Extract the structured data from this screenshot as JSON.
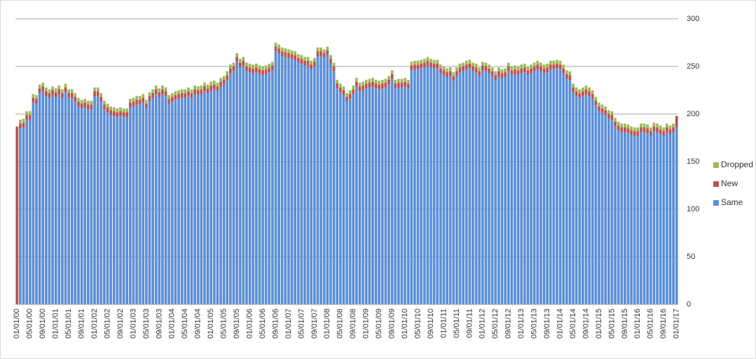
{
  "chart_data": {
    "type": "stacked_bar",
    "categories": [
      "01/01/00",
      null,
      null,
      null,
      "05/01/00",
      null,
      null,
      null,
      "09/01/00",
      null,
      null,
      null,
      "01/01/01",
      null,
      null,
      null,
      "05/01/01",
      null,
      null,
      null,
      "09/01/01",
      null,
      null,
      null,
      "01/01/02",
      null,
      null,
      null,
      "05/01/02",
      null,
      null,
      null,
      "09/01/02",
      null,
      null,
      null,
      "01/01/03",
      null,
      null,
      null,
      "05/01/03",
      null,
      null,
      null,
      "09/01/03",
      null,
      null,
      null,
      "01/01/04",
      null,
      null,
      null,
      "05/01/04",
      null,
      null,
      null,
      "09/01/04",
      null,
      null,
      null,
      "01/01/05",
      null,
      null,
      null,
      "05/01/05",
      null,
      null,
      null,
      "09/01/05",
      null,
      null,
      null,
      "01/01/06",
      null,
      null,
      null,
      "05/01/06",
      null,
      null,
      null,
      "09/01/06",
      null,
      null,
      null,
      "01/01/07",
      null,
      null,
      null,
      "05/01/07",
      null,
      null,
      null,
      "09/01/07",
      null,
      null,
      null,
      "01/01/08",
      null,
      null,
      null,
      "05/01/08",
      null,
      null,
      null,
      "09/01/08",
      null,
      null,
      null,
      "01/01/09",
      null,
      null,
      null,
      "05/01/09",
      null,
      null,
      null,
      "09/01/09",
      null,
      null,
      null,
      "01/01/10",
      null,
      null,
      null,
      "05/01/10",
      null,
      null,
      null,
      "09/01/10",
      null,
      null,
      null,
      "01/01/11",
      null,
      null,
      null,
      "05/01/11",
      null,
      null,
      null,
      "09/01/11",
      null,
      null,
      null,
      "01/01/12",
      null,
      null,
      null,
      "05/01/12",
      null,
      null,
      null,
      "09/01/12",
      null,
      null,
      null,
      "01/01/13",
      null,
      null,
      null,
      "05/01/13",
      null,
      null,
      null,
      "09/01/13",
      null,
      null,
      null,
      "01/01/14",
      null,
      null,
      null,
      "05/01/14",
      null,
      null,
      null,
      "09/01/14",
      null,
      null,
      null,
      "01/01/15",
      null,
      null,
      null,
      "05/01/15",
      null,
      null,
      null,
      "09/01/15",
      null,
      null,
      null,
      "01/01/16",
      null,
      null,
      null,
      "05/01/16",
      null,
      null,
      null,
      "09/01/16",
      null,
      null,
      null,
      "01/01/17"
    ],
    "series": [
      {
        "name": "Same",
        "color": "#5b8fd8",
        "values": [
          0,
          185,
          186,
          194,
          194,
          212,
          211,
          222,
          224,
          219,
          217,
          220,
          218,
          221,
          217,
          223,
          217,
          217,
          213,
          208,
          206,
          207,
          205,
          205,
          219,
          219,
          213,
          205,
          202,
          199,
          198,
          197,
          198,
          197,
          197,
          207,
          208,
          210,
          210,
          212,
          206,
          214,
          217,
          221,
          218,
          221,
          219,
          211,
          213,
          215,
          216,
          217,
          217,
          219,
          217,
          221,
          220,
          221,
          224,
          222,
          225,
          226,
          224,
          229,
          231,
          236,
          243,
          245,
          255,
          249,
          251,
          245,
          244,
          243,
          244,
          242,
          241,
          242,
          244,
          246,
          266,
          264,
          261,
          260,
          259,
          258,
          257,
          254,
          253,
          251,
          251,
          247,
          250,
          261,
          261,
          259,
          262,
          253,
          245,
          227,
          223,
          220,
          213,
          216,
          221,
          229,
          224,
          225,
          227,
          228,
          229,
          227,
          226,
          227,
          228,
          231,
          237,
          227,
          228,
          228,
          229,
          227,
          246,
          247,
          247,
          248,
          249,
          251,
          249,
          248,
          248,
          243,
          241,
          239,
          240,
          235,
          240,
          244,
          245,
          247,
          248,
          245,
          244,
          240,
          246,
          245,
          243,
          240,
          236,
          240,
          238,
          239,
          245,
          241,
          242,
          241,
          243,
          244,
          241,
          243,
          245,
          247,
          245,
          243,
          244,
          247,
          247,
          248,
          247,
          243,
          237,
          236,
          223,
          219,
          217,
          219,
          221,
          219,
          216,
          209,
          203,
          201,
          199,
          195,
          194,
          187,
          183,
          181,
          181,
          180,
          178,
          177,
          177,
          181,
          181,
          180,
          177,
          182,
          181,
          179,
          177,
          181,
          179,
          181,
          186
        ]
      },
      {
        "name": "New",
        "color": "#c0504d",
        "values": [
          187,
          5,
          5,
          5,
          5,
          5,
          5,
          5,
          5,
          5,
          5,
          5,
          5,
          5,
          5,
          5,
          5,
          5,
          5,
          5,
          5,
          5,
          5,
          5,
          5,
          5,
          5,
          5,
          5,
          5,
          5,
          5,
          5,
          5,
          5,
          5,
          5,
          5,
          5,
          5,
          5,
          5,
          5,
          5,
          5,
          5,
          5,
          5,
          5,
          5,
          5,
          5,
          5,
          5,
          5,
          5,
          5,
          5,
          5,
          5,
          5,
          5,
          5,
          5,
          5,
          5,
          5,
          5,
          5,
          5,
          5,
          5,
          5,
          5,
          5,
          5,
          5,
          5,
          5,
          5,
          5,
          5,
          5,
          5,
          5,
          5,
          5,
          5,
          5,
          5,
          5,
          5,
          5,
          5,
          5,
          5,
          5,
          5,
          5,
          5,
          5,
          5,
          5,
          5,
          5,
          5,
          5,
          5,
          5,
          5,
          5,
          5,
          5,
          5,
          5,
          5,
          5,
          5,
          5,
          5,
          5,
          5,
          5,
          5,
          5,
          5,
          5,
          5,
          5,
          5,
          5,
          5,
          5,
          5,
          5,
          5,
          5,
          5,
          5,
          5,
          5,
          5,
          5,
          5,
          5,
          5,
          5,
          5,
          5,
          5,
          5,
          5,
          5,
          5,
          5,
          5,
          5,
          5,
          5,
          5,
          5,
          5,
          5,
          5,
          5,
          5,
          5,
          5,
          5,
          5,
          5,
          5,
          5,
          5,
          5,
          5,
          5,
          5,
          5,
          5,
          5,
          5,
          5,
          5,
          5,
          5,
          5,
          5,
          5,
          5,
          5,
          5,
          5,
          5,
          5,
          5,
          5,
          5,
          5,
          5,
          5,
          5,
          5,
          5,
          12
        ]
      },
      {
        "name": "Dropped",
        "color": "#9bbb59",
        "values": [
          0,
          4,
          4,
          4,
          4,
          4,
          4,
          4,
          4,
          4,
          4,
          4,
          4,
          4,
          4,
          4,
          4,
          4,
          4,
          4,
          4,
          4,
          4,
          4,
          4,
          4,
          4,
          4,
          4,
          4,
          4,
          4,
          4,
          4,
          4,
          4,
          4,
          4,
          4,
          4,
          4,
          4,
          4,
          4,
          4,
          4,
          4,
          4,
          4,
          4,
          4,
          4,
          4,
          4,
          4,
          4,
          4,
          4,
          4,
          4,
          4,
          4,
          4,
          4,
          4,
          4,
          4,
          4,
          4,
          4,
          4,
          4,
          4,
          4,
          4,
          4,
          4,
          4,
          4,
          4,
          4,
          4,
          4,
          4,
          4,
          4,
          4,
          4,
          4,
          4,
          4,
          4,
          4,
          4,
          4,
          4,
          4,
          4,
          4,
          4,
          4,
          4,
          4,
          4,
          4,
          4,
          4,
          4,
          4,
          4,
          4,
          4,
          4,
          4,
          4,
          4,
          4,
          4,
          4,
          4,
          4,
          4,
          4,
          4,
          4,
          4,
          4,
          4,
          4,
          4,
          4,
          4,
          4,
          4,
          4,
          4,
          4,
          4,
          4,
          4,
          4,
          4,
          4,
          4,
          4,
          4,
          4,
          4,
          4,
          4,
          4,
          4,
          4,
          4,
          4,
          4,
          4,
          4,
          4,
          4,
          4,
          4,
          4,
          4,
          4,
          4,
          4,
          4,
          4,
          4,
          4,
          4,
          4,
          4,
          4,
          4,
          4,
          4,
          4,
          4,
          4,
          4,
          4,
          4,
          4,
          4,
          4,
          4,
          4,
          4,
          4,
          4,
          4,
          4,
          4,
          4,
          4,
          4,
          4,
          4,
          4,
          4,
          4,
          4,
          0
        ]
      }
    ],
    "ylim": [
      0,
      300
    ],
    "yticks": [
      0,
      50,
      100,
      150,
      200,
      250,
      300
    ],
    "grid": true,
    "legend": "right"
  }
}
